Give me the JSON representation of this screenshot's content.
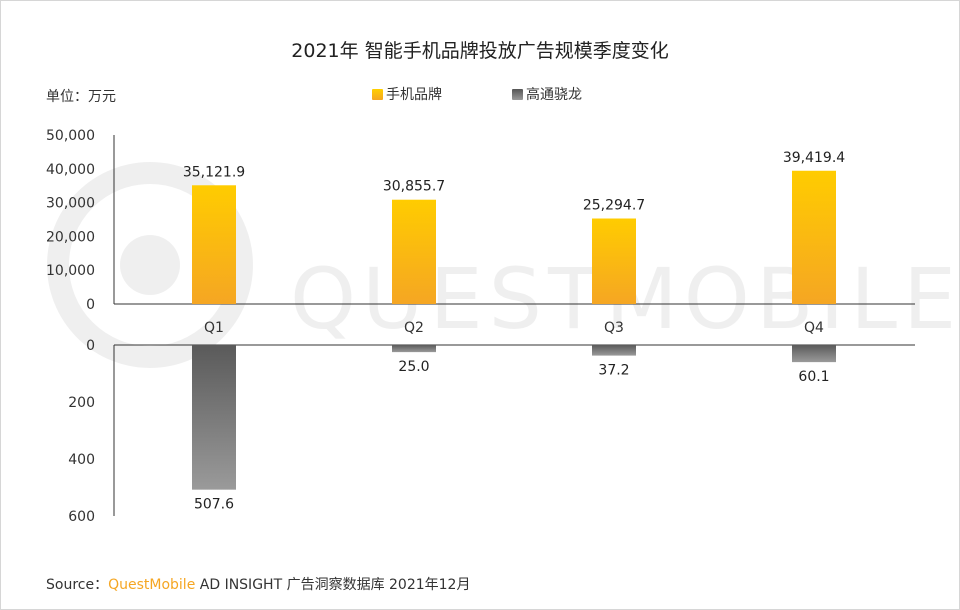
{
  "title": "2021年 智能手机品牌投放广告规模季度变化",
  "unit_label": "单位：万元",
  "legend": [
    {
      "label": "手机品牌",
      "color": "#ffbe00"
    },
    {
      "label": "高通骁龙",
      "color": "#666666"
    }
  ],
  "watermark": "QUESTMOBILE",
  "source": {
    "prefix": "Source：",
    "brand": "QuestMobile",
    "suffix": " AD INSIGHT 广告洞察数据库 2021年12月"
  },
  "chart_data": [
    {
      "type": "bar",
      "categories": [
        "Q1",
        "Q2",
        "Q3",
        "Q4"
      ],
      "series": [
        {
          "name": "手机品牌",
          "values": [
            35121.9,
            30855.7,
            25294.7,
            39419.4
          ]
        }
      ],
      "value_labels": [
        "35,121.9",
        "30,855.7",
        "25,294.7",
        "39,419.4"
      ],
      "ylim": [
        0,
        50000
      ],
      "yticks": [
        "0",
        "10,000",
        "20,000",
        "30,000",
        "40,000",
        "50,000"
      ],
      "ytick_values": [
        0,
        10000,
        20000,
        30000,
        40000,
        50000
      ],
      "color": "#ffbe00"
    },
    {
      "type": "bar",
      "categories": [
        "Q1",
        "Q2",
        "Q3",
        "Q4"
      ],
      "series": [
        {
          "name": "高通骁龙",
          "values": [
            507.6,
            25.0,
            37.2,
            60.1
          ]
        }
      ],
      "value_labels": [
        "507.6",
        "25.0",
        "37.2",
        "60.1"
      ],
      "ylim": [
        0,
        600
      ],
      "yticks": [
        "0",
        "200",
        "400",
        "600"
      ],
      "ytick_values": [
        0,
        200,
        400,
        600
      ],
      "inverted": true,
      "color": "#666666"
    }
  ]
}
